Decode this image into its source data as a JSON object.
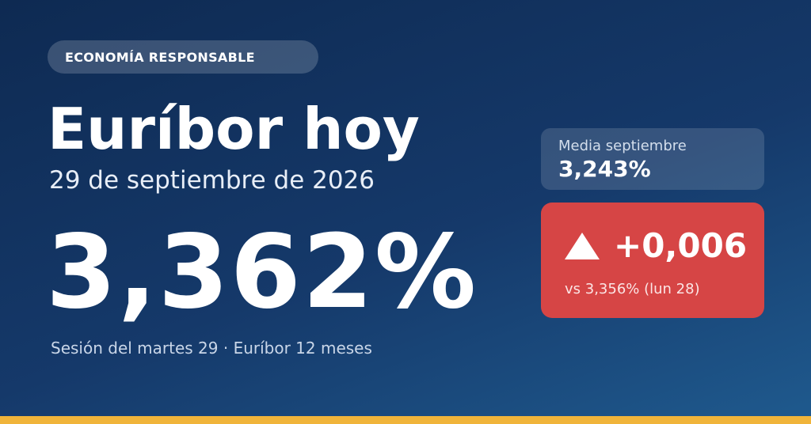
{
  "brand": {
    "badge_label": "ECONOMÍA RESPONSABLE"
  },
  "headline": {
    "title": "Euríbor hoy",
    "date": "29 de septiembre de 2026",
    "rate": "3,362%",
    "session_note": "Sesión del martes 29 · Euríbor 12 meses"
  },
  "monthly_average": {
    "label": "Media septiembre",
    "value": "3,243%"
  },
  "daily_change": {
    "direction_icon": "triangle-up-icon",
    "value": "+0,006",
    "comparison": "vs 3,356% (lun 28)"
  },
  "colors": {
    "background_start": "#0e2a52",
    "background_end": "#1f5a8e",
    "change_card": "#d64545",
    "accent_bar": "#f0b43a"
  }
}
